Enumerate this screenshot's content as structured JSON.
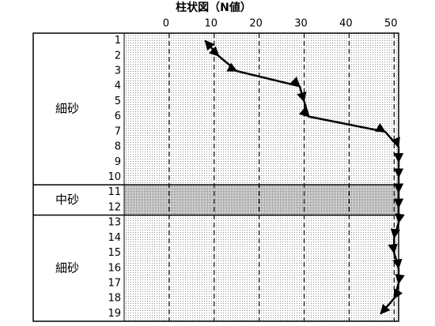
{
  "chart_data": {
    "type": "line",
    "title": "柱状図（N値）",
    "categories": [
      1,
      2,
      3,
      4,
      5,
      6,
      7,
      8,
      9,
      10,
      11,
      12,
      13,
      14,
      15,
      16,
      17,
      18,
      19
    ],
    "values": [
      8,
      11,
      15,
      29,
      30,
      31,
      48,
      51,
      51,
      51,
      51,
      51,
      51,
      50,
      50,
      51,
      51,
      50,
      47
    ],
    "color": "#000000",
    "xlim": [
      -10,
      51
    ],
    "xticks": [
      0,
      10,
      20,
      30,
      40,
      50
    ],
    "grid": true,
    "layers": [
      {
        "label": "細砂",
        "top": 1,
        "bottom": 10
      },
      {
        "label": "中砂",
        "top": 11,
        "bottom": 12
      },
      {
        "label": "細砂",
        "top": 13,
        "bottom": 19
      }
    ]
  }
}
